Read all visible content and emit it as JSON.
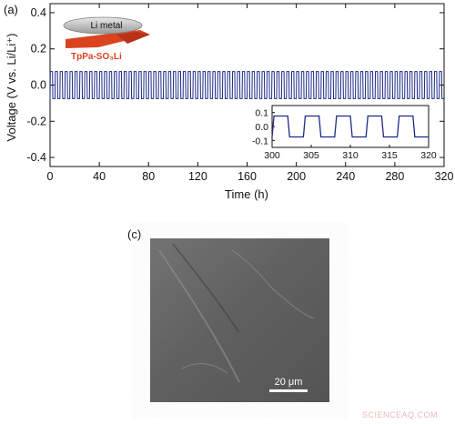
{
  "panels": {
    "a_label": "(a)",
    "c_label": "(c)"
  },
  "illustration": {
    "top_layer": "Li metal",
    "bottom_layer": "TpPa-SO₃Li",
    "bottom_color": "#d9431e"
  },
  "chart_data": [
    {
      "type": "line",
      "title": "",
      "xlabel": "Time (h)",
      "ylabel": "Voltage (V vs. Li/Li⁺)",
      "xlim": [
        0,
        320
      ],
      "ylim": [
        -0.45,
        0.45
      ],
      "xticks": [
        0,
        40,
        80,
        120,
        160,
        200,
        240,
        280,
        320
      ],
      "yticks": [
        -0.4,
        -0.2,
        0.0,
        0.2,
        0.4
      ],
      "ytick_labels": [
        "-0.4",
        "-0.2",
        "0.0",
        "0.2",
        "0.4"
      ],
      "grid": false,
      "series": [
        {
          "color": "#1c2a86",
          "waveform": "square",
          "period_h": 4,
          "high_v": 0.075,
          "low_v": -0.075,
          "x_start": 0,
          "x_end": 320
        }
      ]
    },
    {
      "type": "line",
      "role": "inset",
      "xlim": [
        300,
        320
      ],
      "ylim": [
        -0.15,
        0.15
      ],
      "xticks": [
        300,
        305,
        310,
        315,
        320
      ],
      "yticks": [
        0.1,
        0.0,
        -0.1
      ],
      "ytick_labels": [
        "0.1",
        "0.0",
        "-0.1"
      ],
      "series": [
        {
          "color": "#1c2a86",
          "waveform": "square",
          "period_h": 4,
          "high_v": 0.075,
          "low_v": -0.075,
          "x_start": 300,
          "x_end": 320
        }
      ]
    }
  ],
  "sem_image": {
    "scale_bar_label": "20 μm"
  },
  "watermark": "SCIENCEAQ.COM"
}
